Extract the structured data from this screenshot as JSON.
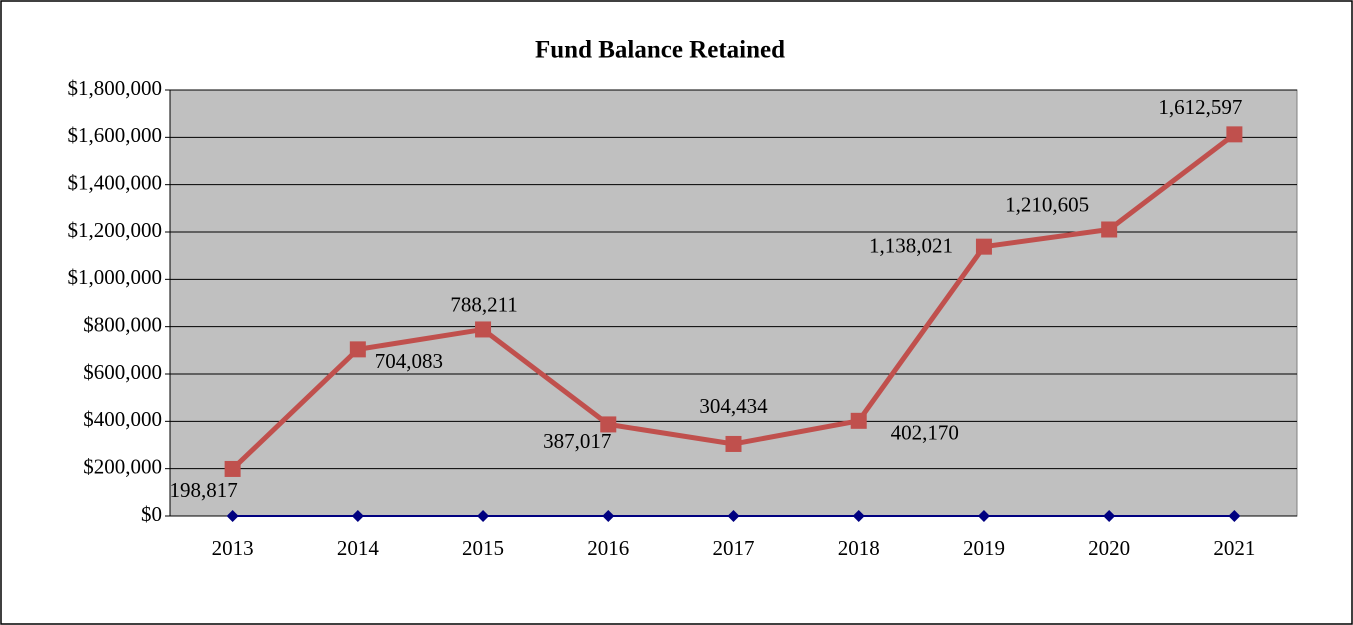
{
  "chart_data": {
    "type": "line",
    "title": "Fund Balance Retained",
    "categories": [
      "2013",
      "2014",
      "2015",
      "2016",
      "2017",
      "2018",
      "2019",
      "2020",
      "2021"
    ],
    "series": [
      {
        "color": "#c0504d",
        "marker": "square",
        "values": [
          198817,
          704083,
          788211,
          387017,
          304434,
          402170,
          1138021,
          1210605,
          1612597
        ],
        "value_labels": [
          "198,817",
          "704,083",
          "788,211",
          "387,017",
          "304,434",
          "402,170",
          "1,138,021",
          "1,210,605",
          "1,612,597"
        ]
      },
      {
        "color": "#000080",
        "marker": "diamond",
        "values": [
          0,
          0,
          0,
          0,
          0,
          0,
          0,
          0,
          0
        ]
      }
    ],
    "ylim": [
      0,
      1800000
    ],
    "yticks": [
      {
        "value": 0,
        "label": "$0"
      },
      {
        "value": 200000,
        "label": "$200,000"
      },
      {
        "value": 400000,
        "label": "$400,000"
      },
      {
        "value": 600000,
        "label": "$600,000"
      },
      {
        "value": 800000,
        "label": "$800,000"
      },
      {
        "value": 1000000,
        "label": "$1,000,000"
      },
      {
        "value": 1200000,
        "label": "$1,200,000"
      },
      {
        "value": 1400000,
        "label": "$1,400,000"
      },
      {
        "value": 1600000,
        "label": "$1,600,000"
      },
      {
        "value": 1800000,
        "label": "$1,800,000"
      }
    ],
    "grid": true,
    "plot_background": "#c0c0c0"
  }
}
